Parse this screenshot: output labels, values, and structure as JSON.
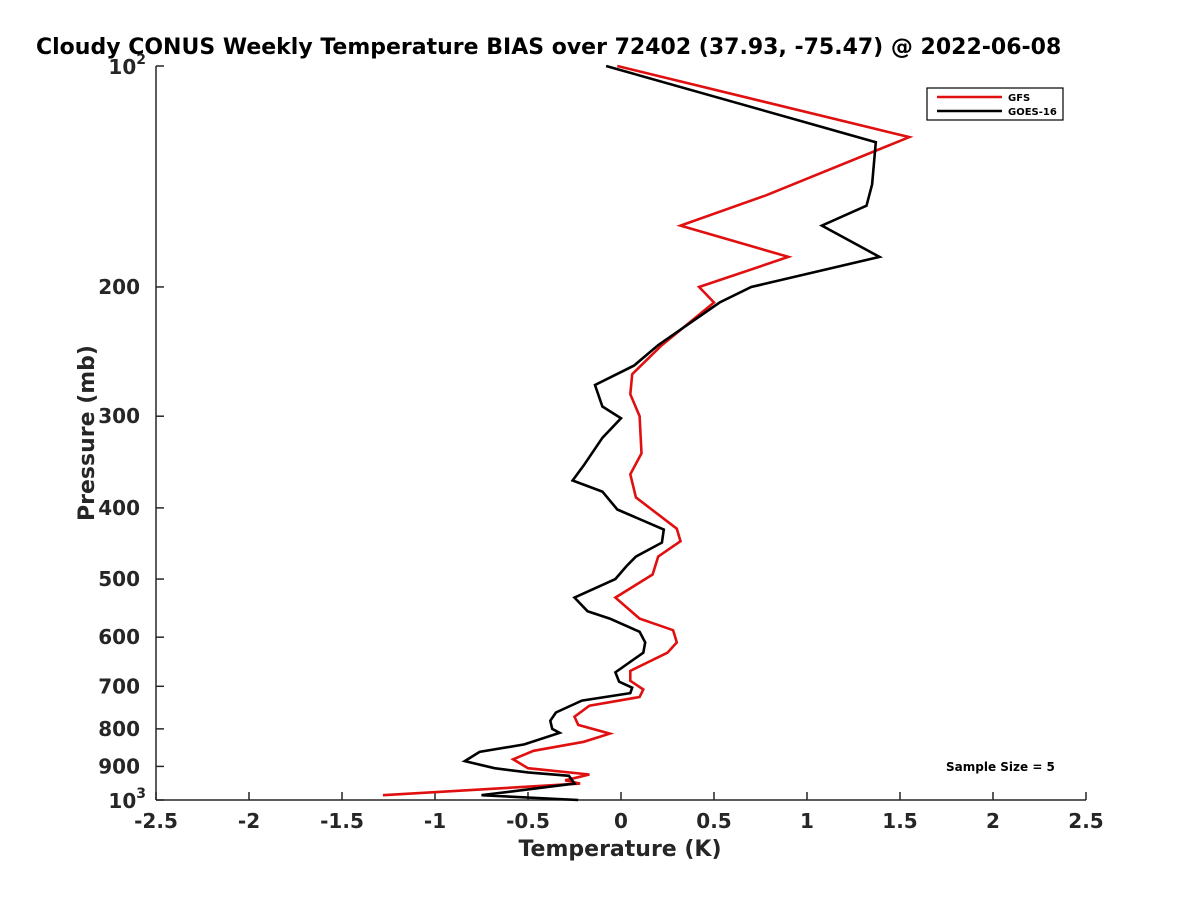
{
  "chart_data": {
    "type": "line",
    "title": "Cloudy CONUS Weekly Temperature BIAS over 72402 (37.93, -75.47) @ 2022-06-08",
    "xlabel": "Temperature (K)",
    "ylabel": "Pressure (mb)",
    "xlim": [
      -2.5,
      2.5
    ],
    "ylim": [
      100,
      1000
    ],
    "y_scale": "log",
    "y_reversed": true,
    "x_ticks": [
      "-2.5",
      "-2",
      "-1.5",
      "-1",
      "-0.5",
      "0",
      "0.5",
      "1",
      "1.5",
      "2",
      "2.5"
    ],
    "y_ticks": [
      {
        "value": 100,
        "base": "10",
        "exp": "2"
      },
      {
        "value": 200,
        "label": "200"
      },
      {
        "value": 300,
        "label": "300"
      },
      {
        "value": 400,
        "label": "400"
      },
      {
        "value": 500,
        "label": "500"
      },
      {
        "value": 600,
        "label": "600"
      },
      {
        "value": 700,
        "label": "700"
      },
      {
        "value": 800,
        "label": "800"
      },
      {
        "value": 900,
        "label": "900"
      },
      {
        "value": 1000,
        "base": "10",
        "exp": "3"
      }
    ],
    "grid": false,
    "legend_position": "top-right",
    "annotation": "Sample Size = 5",
    "series": [
      {
        "name": "GFS",
        "color": "#e01010",
        "points": [
          [
            -0.02,
            100
          ],
          [
            1.55,
            125
          ],
          [
            0.78,
            150
          ],
          [
            0.32,
            165
          ],
          [
            0.9,
            182
          ],
          [
            0.42,
            200
          ],
          [
            0.5,
            210
          ],
          [
            0.22,
            240
          ],
          [
            0.06,
            263
          ],
          [
            0.05,
            280
          ],
          [
            0.1,
            300
          ],
          [
            0.11,
            337
          ],
          [
            0.05,
            360
          ],
          [
            0.08,
            387
          ],
          [
            0.3,
            427
          ],
          [
            0.32,
            444
          ],
          [
            0.2,
            466
          ],
          [
            0.17,
            493
          ],
          [
            -0.03,
            530
          ],
          [
            0.1,
            566
          ],
          [
            0.28,
            587
          ],
          [
            0.3,
            610
          ],
          [
            0.25,
            630
          ],
          [
            0.05,
            667
          ],
          [
            0.05,
            688
          ],
          [
            0.12,
            707
          ],
          [
            0.1,
            724
          ],
          [
            -0.17,
            744
          ],
          [
            -0.25,
            770
          ],
          [
            -0.23,
            790
          ],
          [
            -0.06,
            812
          ],
          [
            -0.2,
            833
          ],
          [
            -0.47,
            857
          ],
          [
            -0.58,
            880
          ],
          [
            -0.5,
            905
          ],
          [
            -0.17,
            923
          ],
          [
            -0.3,
            940
          ],
          [
            -0.22,
            950
          ],
          [
            -1.28,
            985
          ]
        ]
      },
      {
        "name": "GOES-16",
        "color": "#000000",
        "points": [
          [
            -0.08,
            100
          ],
          [
            1.37,
            127
          ],
          [
            1.35,
            145
          ],
          [
            1.32,
            155
          ],
          [
            1.08,
            165
          ],
          [
            1.39,
            182
          ],
          [
            0.7,
            200
          ],
          [
            0.53,
            210
          ],
          [
            0.2,
            240
          ],
          [
            0.07,
            256
          ],
          [
            -0.14,
            272
          ],
          [
            -0.1,
            291
          ],
          [
            0.0,
            302
          ],
          [
            -0.1,
            321
          ],
          [
            -0.2,
            350
          ],
          [
            -0.26,
            367
          ],
          [
            -0.1,
            380
          ],
          [
            -0.02,
            402
          ],
          [
            0.23,
            428
          ],
          [
            0.22,
            446
          ],
          [
            0.08,
            466
          ],
          [
            0.03,
            480
          ],
          [
            -0.03,
            500
          ],
          [
            -0.25,
            530
          ],
          [
            -0.18,
            553
          ],
          [
            -0.06,
            566
          ],
          [
            0.1,
            590
          ],
          [
            0.13,
            610
          ],
          [
            0.12,
            630
          ],
          [
            -0.03,
            670
          ],
          [
            -0.01,
            690
          ],
          [
            0.06,
            703
          ],
          [
            0.05,
            715
          ],
          [
            -0.21,
            732
          ],
          [
            -0.35,
            760
          ],
          [
            -0.38,
            780
          ],
          [
            -0.37,
            800
          ],
          [
            -0.33,
            810
          ],
          [
            -0.52,
            840
          ],
          [
            -0.76,
            860
          ],
          [
            -0.84,
            885
          ],
          [
            -0.68,
            905
          ],
          [
            -0.5,
            917
          ],
          [
            -0.28,
            927
          ],
          [
            -0.25,
            950
          ],
          [
            -0.75,
            985
          ],
          [
            -0.23,
            1000
          ]
        ]
      }
    ]
  }
}
